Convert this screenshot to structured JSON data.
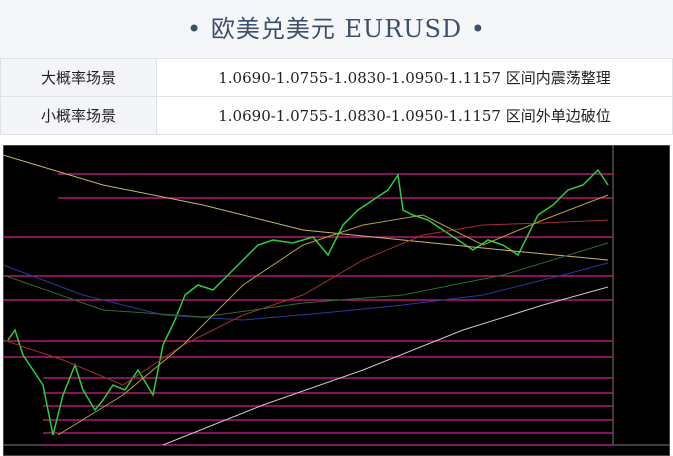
{
  "header": {
    "title": "• 欧美兑美元 EURUSD •"
  },
  "table": {
    "rows": [
      [
        "大概率场景",
        "1.0690-1.0755-1.0830-1.0950-1.1157 区间内震荡整理"
      ],
      [
        "小概率场景",
        "1.0690-1.0755-1.0830-1.0950-1.1157 区间外单边破位"
      ]
    ]
  }
}
